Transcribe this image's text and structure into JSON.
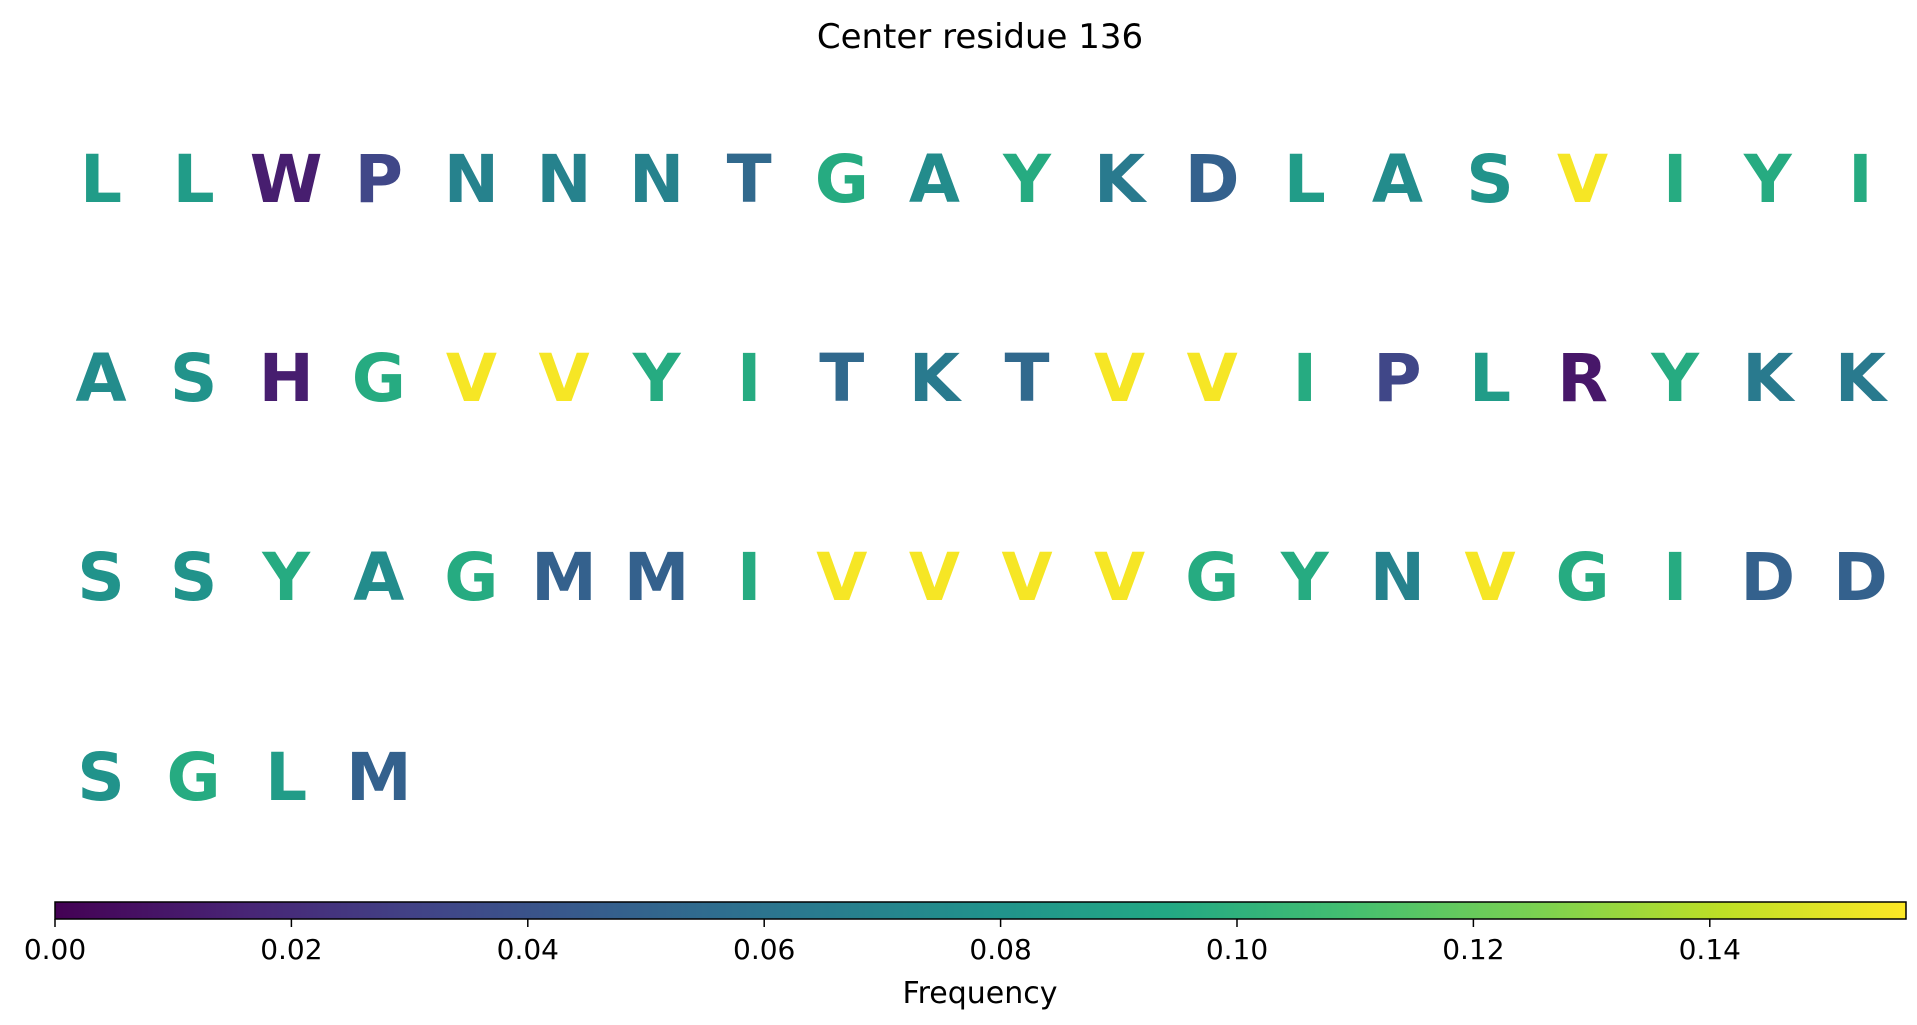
{
  "chart_data": {
    "type": "sequence-logo",
    "title": "Center residue 136",
    "columns_per_row": 20,
    "residues": [
      {
        "letter": "L",
        "frequency": 0.086
      },
      {
        "letter": "L",
        "frequency": 0.086
      },
      {
        "letter": "W",
        "frequency": 0.013
      },
      {
        "letter": "P",
        "frequency": 0.033
      },
      {
        "letter": "N",
        "frequency": 0.069
      },
      {
        "letter": "N",
        "frequency": 0.069
      },
      {
        "letter": "N",
        "frequency": 0.069
      },
      {
        "letter": "T",
        "frequency": 0.053
      },
      {
        "letter": "G",
        "frequency": 0.096
      },
      {
        "letter": "A",
        "frequency": 0.075
      },
      {
        "letter": "Y",
        "frequency": 0.096
      },
      {
        "letter": "K",
        "frequency": 0.064
      },
      {
        "letter": "D",
        "frequency": 0.048
      },
      {
        "letter": "L",
        "frequency": 0.086
      },
      {
        "letter": "A",
        "frequency": 0.075
      },
      {
        "letter": "S",
        "frequency": 0.08
      },
      {
        "letter": "V",
        "frequency": 0.155
      },
      {
        "letter": "I",
        "frequency": 0.096
      },
      {
        "letter": "Y",
        "frequency": 0.096
      },
      {
        "letter": "I",
        "frequency": 0.096
      },
      {
        "letter": "A",
        "frequency": 0.075
      },
      {
        "letter": "S",
        "frequency": 0.08
      },
      {
        "letter": "H",
        "frequency": 0.013
      },
      {
        "letter": "G",
        "frequency": 0.096
      },
      {
        "letter": "V",
        "frequency": 0.155
      },
      {
        "letter": "V",
        "frequency": 0.155
      },
      {
        "letter": "Y",
        "frequency": 0.096
      },
      {
        "letter": "I",
        "frequency": 0.096
      },
      {
        "letter": "T",
        "frequency": 0.053
      },
      {
        "letter": "K",
        "frequency": 0.064
      },
      {
        "letter": "T",
        "frequency": 0.053
      },
      {
        "letter": "V",
        "frequency": 0.155
      },
      {
        "letter": "V",
        "frequency": 0.155
      },
      {
        "letter": "I",
        "frequency": 0.096
      },
      {
        "letter": "P",
        "frequency": 0.033
      },
      {
        "letter": "L",
        "frequency": 0.086
      },
      {
        "letter": "R",
        "frequency": 0.01
      },
      {
        "letter": "Y",
        "frequency": 0.096
      },
      {
        "letter": "K",
        "frequency": 0.064
      },
      {
        "letter": "K",
        "frequency": 0.064
      },
      {
        "letter": "S",
        "frequency": 0.08
      },
      {
        "letter": "S",
        "frequency": 0.08
      },
      {
        "letter": "Y",
        "frequency": 0.096
      },
      {
        "letter": "A",
        "frequency": 0.075
      },
      {
        "letter": "G",
        "frequency": 0.096
      },
      {
        "letter": "M",
        "frequency": 0.048
      },
      {
        "letter": "M",
        "frequency": 0.048
      },
      {
        "letter": "I",
        "frequency": 0.096
      },
      {
        "letter": "V",
        "frequency": 0.155
      },
      {
        "letter": "V",
        "frequency": 0.155
      },
      {
        "letter": "V",
        "frequency": 0.155
      },
      {
        "letter": "V",
        "frequency": 0.155
      },
      {
        "letter": "G",
        "frequency": 0.096
      },
      {
        "letter": "Y",
        "frequency": 0.096
      },
      {
        "letter": "N",
        "frequency": 0.069
      },
      {
        "letter": "V",
        "frequency": 0.155
      },
      {
        "letter": "G",
        "frequency": 0.096
      },
      {
        "letter": "I",
        "frequency": 0.096
      },
      {
        "letter": "D",
        "frequency": 0.048
      },
      {
        "letter": "D",
        "frequency": 0.048
      },
      {
        "letter": "S",
        "frequency": 0.08
      },
      {
        "letter": "G",
        "frequency": 0.096
      },
      {
        "letter": "L",
        "frequency": 0.086
      },
      {
        "letter": "M",
        "frequency": 0.048
      }
    ],
    "colorbar": {
      "label": "Frequency",
      "colormap": "viridis",
      "range": [
        0,
        0.1566
      ],
      "ticks": [
        "0.00",
        "0.02",
        "0.04",
        "0.06",
        "0.08",
        "0.10",
        "0.12",
        "0.14"
      ]
    }
  }
}
